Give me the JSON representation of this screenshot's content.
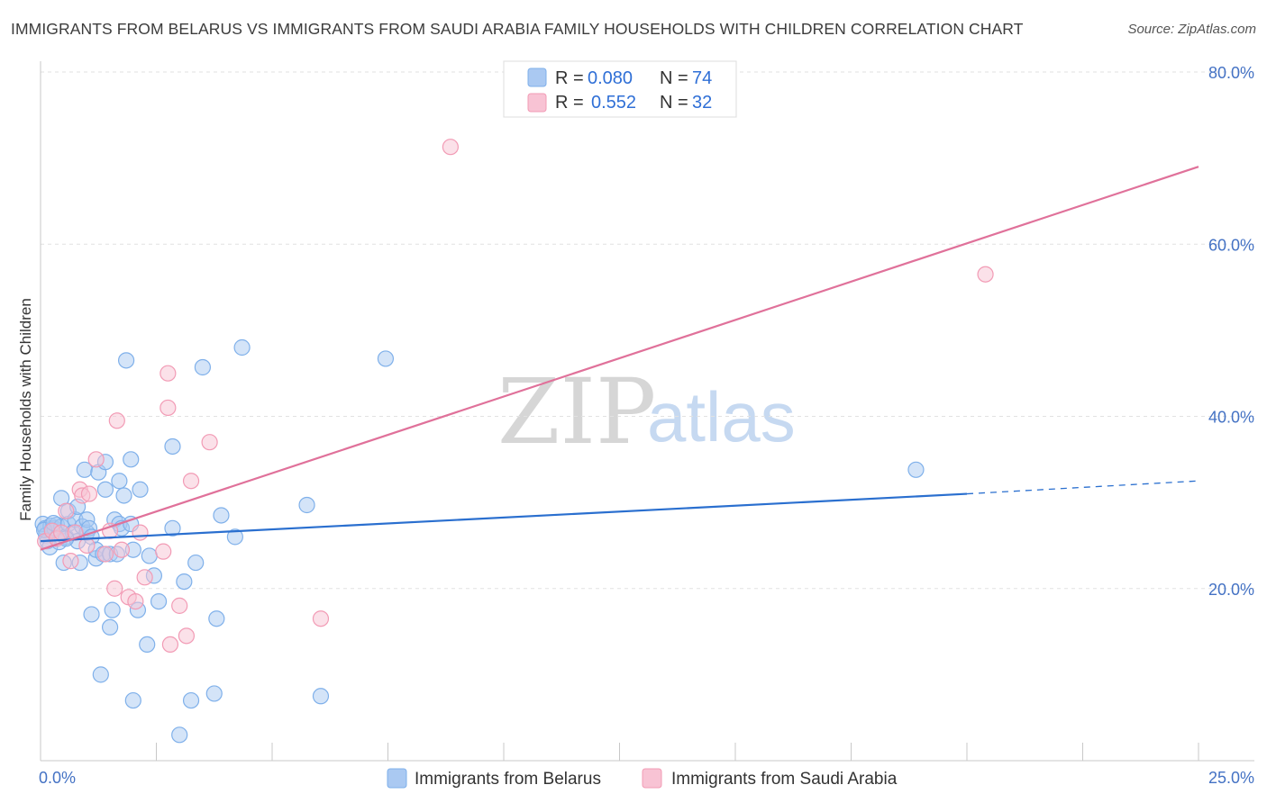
{
  "title": "IMMIGRANTS FROM BELARUS VS IMMIGRANTS FROM SAUDI ARABIA FAMILY HOUSEHOLDS WITH CHILDREN CORRELATION CHART",
  "source": "Source: ZipAtlas.com",
  "watermark": {
    "zip": "ZIP",
    "atlas": "atlas"
  },
  "chart_data": {
    "type": "scatter",
    "ylabel": "Family Households with Children",
    "xlim": [
      0,
      25
    ],
    "ylim": [
      0,
      80
    ],
    "x_tick_labels": [
      {
        "value": 0,
        "label": "0.0%"
      },
      {
        "value": 25,
        "label": "25.0%"
      }
    ],
    "y_tick_labels": [
      {
        "value": 20,
        "label": "20.0%"
      },
      {
        "value": 40,
        "label": "40.0%"
      },
      {
        "value": 60,
        "label": "60.0%"
      },
      {
        "value": 80,
        "label": "80.0%"
      }
    ],
    "legend_stats": [
      {
        "r_label": "R =",
        "r_value": "0.080",
        "n_label": "N =",
        "n_value": "74"
      },
      {
        "r_label": "R =",
        "r_value": "0.552",
        "n_label": "N =",
        "n_value": "32"
      }
    ],
    "series": [
      {
        "name": "Immigrants from Belarus",
        "color": "#7fb0ea",
        "fill": "#aac9f2",
        "line_color": "#2a6fcf",
        "trend": {
          "x0": 0,
          "y0": 25.5,
          "x1": 20,
          "y1": 31.0,
          "dash_to_x": 25,
          "dash_to_y": 32.5
        },
        "points": [
          [
            0.05,
            27.5
          ],
          [
            0.1,
            27.0
          ],
          [
            0.12,
            26.2
          ],
          [
            0.15,
            25.5
          ],
          [
            0.2,
            24.8
          ],
          [
            0.22,
            27.3
          ],
          [
            0.25,
            26.8
          ],
          [
            0.3,
            27.0
          ],
          [
            0.35,
            27.4
          ],
          [
            0.4,
            25.4
          ],
          [
            0.45,
            30.5
          ],
          [
            0.45,
            27.2
          ],
          [
            0.5,
            23.0
          ],
          [
            0.55,
            26.0
          ],
          [
            0.6,
            27.5
          ],
          [
            0.6,
            29.0
          ],
          [
            0.7,
            26.5
          ],
          [
            0.75,
            28.0
          ],
          [
            0.8,
            29.5
          ],
          [
            0.8,
            25.5
          ],
          [
            0.85,
            23.0
          ],
          [
            0.9,
            27.2
          ],
          [
            0.95,
            33.8
          ],
          [
            1.0,
            26.5
          ],
          [
            1.0,
            28.0
          ],
          [
            1.05,
            27.0
          ],
          [
            1.1,
            26.0
          ],
          [
            1.1,
            17.0
          ],
          [
            1.2,
            23.5
          ],
          [
            1.2,
            24.5
          ],
          [
            1.25,
            33.5
          ],
          [
            1.3,
            10.0
          ],
          [
            1.35,
            24.0
          ],
          [
            1.4,
            31.5
          ],
          [
            1.4,
            34.7
          ],
          [
            1.5,
            15.5
          ],
          [
            1.5,
            24.0
          ],
          [
            1.55,
            17.5
          ],
          [
            1.6,
            28.0
          ],
          [
            1.65,
            24.0
          ],
          [
            1.7,
            27.5
          ],
          [
            1.7,
            32.5
          ],
          [
            1.75,
            27.0
          ],
          [
            1.8,
            30.8
          ],
          [
            1.85,
            46.5
          ],
          [
            1.95,
            27.5
          ],
          [
            1.95,
            35.0
          ],
          [
            2.0,
            24.5
          ],
          [
            2.0,
            7.0
          ],
          [
            2.1,
            17.5
          ],
          [
            2.15,
            31.5
          ],
          [
            2.3,
            13.5
          ],
          [
            2.35,
            23.8
          ],
          [
            2.45,
            21.5
          ],
          [
            2.55,
            18.5
          ],
          [
            2.85,
            27.0
          ],
          [
            2.85,
            36.5
          ],
          [
            3.0,
            3.0
          ],
          [
            3.1,
            20.8
          ],
          [
            3.25,
            7.0
          ],
          [
            3.35,
            23.0
          ],
          [
            3.5,
            45.7
          ],
          [
            3.75,
            7.8
          ],
          [
            3.8,
            16.5
          ],
          [
            3.9,
            28.5
          ],
          [
            4.2,
            26.0
          ],
          [
            4.35,
            48.0
          ],
          [
            5.75,
            29.7
          ],
          [
            6.05,
            7.5
          ],
          [
            7.45,
            46.7
          ],
          [
            18.9,
            33.8
          ],
          [
            0.08,
            26.8
          ],
          [
            0.28,
            27.6
          ],
          [
            0.55,
            25.8
          ]
        ]
      },
      {
        "name": "Immigrants from Saudi Arabia",
        "color": "#f29bb5",
        "fill": "#f8c3d4",
        "line_color": "#e0719a",
        "trend": {
          "x0": 0,
          "y0": 24.5,
          "x1": 25,
          "y1": 69.0
        },
        "points": [
          [
            0.1,
            25.5
          ],
          [
            0.25,
            26.7
          ],
          [
            0.35,
            25.8
          ],
          [
            0.45,
            26.5
          ],
          [
            0.55,
            29.0
          ],
          [
            0.65,
            23.2
          ],
          [
            0.75,
            26.5
          ],
          [
            0.85,
            31.5
          ],
          [
            0.9,
            30.8
          ],
          [
            1.0,
            25.0
          ],
          [
            1.05,
            31.0
          ],
          [
            1.2,
            35.0
          ],
          [
            1.4,
            24.0
          ],
          [
            1.5,
            26.7
          ],
          [
            1.6,
            20.0
          ],
          [
            1.65,
            39.5
          ],
          [
            1.75,
            24.5
          ],
          [
            1.9,
            19.0
          ],
          [
            2.05,
            18.5
          ],
          [
            2.15,
            26.5
          ],
          [
            2.25,
            21.3
          ],
          [
            2.65,
            24.3
          ],
          [
            2.75,
            45.0
          ],
          [
            2.8,
            13.5
          ],
          [
            2.75,
            41.0
          ],
          [
            3.0,
            18.0
          ],
          [
            3.15,
            14.5
          ],
          [
            3.25,
            32.5
          ],
          [
            3.65,
            37.0
          ],
          [
            6.05,
            16.5
          ],
          [
            8.85,
            71.3
          ],
          [
            20.4,
            56.5
          ]
        ]
      }
    ]
  }
}
